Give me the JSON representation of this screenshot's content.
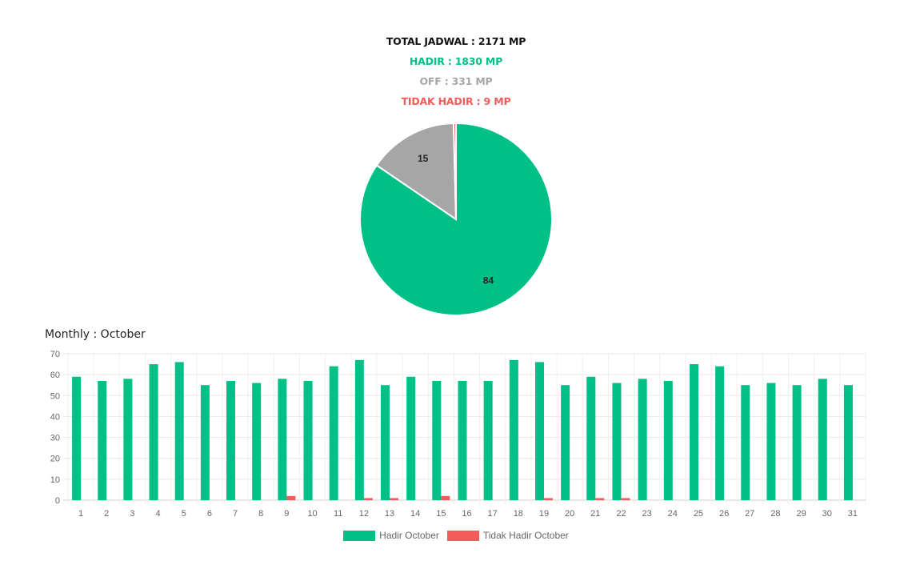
{
  "summary": {
    "total": "TOTAL JADWAL : 2171 MP",
    "hadir": "HADIR : 1830 MP",
    "off": "OFF : 331 MP",
    "tidak_hadir": "TIDAK HADIR : 9 MP"
  },
  "colors": {
    "hadir": "#00bf87",
    "off": "#a6a6a6",
    "tidak_hadir": "#f45b5b"
  },
  "monthly_title": "Monthly : October",
  "chart_data": [
    {
      "type": "pie",
      "slices": [
        {
          "label": "Hadir",
          "value": 84,
          "display": "84",
          "color": "#00bf87"
        },
        {
          "label": "Off",
          "value": 15,
          "display": "15",
          "color": "#a6a6a6"
        },
        {
          "label": "Tidak Hadir",
          "value": 0.4,
          "display": "",
          "color": "#f45b5b"
        }
      ]
    },
    {
      "type": "bar",
      "title": "Monthly : October",
      "categories": [
        "1",
        "2",
        "3",
        "4",
        "5",
        "6",
        "7",
        "8",
        "9",
        "10",
        "11",
        "12",
        "13",
        "14",
        "15",
        "16",
        "17",
        "18",
        "19",
        "20",
        "21",
        "22",
        "23",
        "24",
        "25",
        "26",
        "27",
        "28",
        "29",
        "30",
        "31"
      ],
      "series": [
        {
          "name": "Hadir October",
          "color": "#00bf87",
          "values": [
            59,
            57,
            58,
            65,
            66,
            55,
            57,
            56,
            58,
            57,
            64,
            67,
            55,
            59,
            57,
            57,
            57,
            67,
            66,
            55,
            59,
            56,
            58,
            57,
            65,
            64,
            55,
            56,
            55,
            58,
            55
          ]
        },
        {
          "name": "Tidak Hadir October",
          "color": "#f45b5b",
          "values": [
            0,
            0,
            0,
            0,
            0,
            0,
            0,
            0,
            2,
            0,
            0,
            1,
            1,
            0,
            2,
            0,
            0,
            0,
            1,
            0,
            1,
            1,
            0,
            0,
            0,
            0,
            0,
            0,
            0,
            0,
            0
          ]
        }
      ],
      "ylim": [
        0,
        70
      ],
      "yticks": [
        0,
        10,
        20,
        30,
        40,
        50,
        60,
        70
      ],
      "grid": true,
      "legend": "bottom"
    }
  ]
}
